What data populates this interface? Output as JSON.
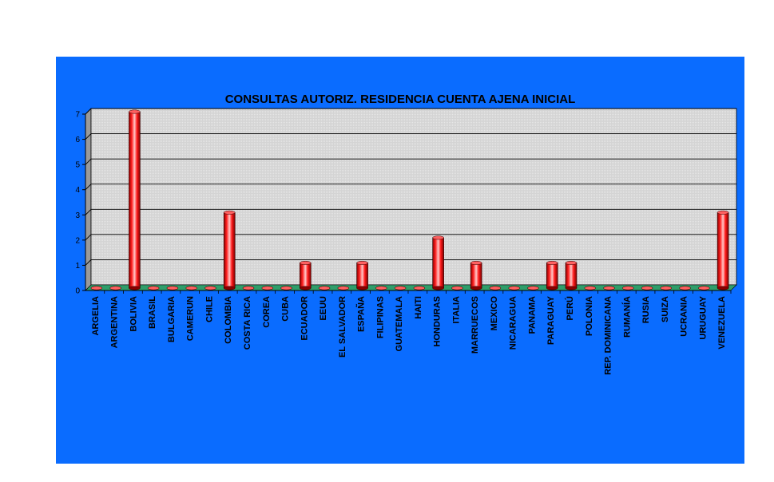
{
  "chart_data": {
    "type": "bar",
    "title": "CONSULTAS AUTORIZ. RESIDENCIA CUENTA AJENA INICIAL",
    "xlabel": "",
    "ylabel": "",
    "ylim": [
      0,
      7
    ],
    "yticks": [
      "0",
      "1",
      "2",
      "3",
      "4",
      "5",
      "6",
      "7"
    ],
    "grid": true,
    "legend": "none",
    "categories": [
      "ARGELIA",
      "ARGENTINA",
      "BOLIVIA",
      "BRASIL",
      "BULGARIA",
      "CAMERUN",
      "CHILE",
      "COLOMBIA",
      "COSTA RICA",
      "COREA",
      "CUBA",
      "ECUADOR",
      "EEUU",
      "EL SALVADOR",
      "ESPAÑA",
      "FILIPINAS",
      "GUATEMALA",
      "HAITI",
      "HONDURAS",
      "ITALIA",
      "MARRUECOS",
      "MEXICO",
      "NICARAGUA",
      "PANAMA",
      "PARAGUAY",
      "PERÚ",
      "POLONIA",
      "REP. DOMINICANA",
      "RUMANÍA",
      "RUSIA",
      "SUIZA",
      "UCRANIA",
      "URUGUAY",
      "VENEZUELA"
    ],
    "values": [
      0,
      0,
      7,
      0,
      0,
      0,
      0,
      3,
      0,
      0,
      0,
      1,
      0,
      0,
      1,
      0,
      0,
      0,
      2,
      0,
      1,
      0,
      0,
      0,
      1,
      1,
      0,
      0,
      0,
      0,
      0,
      0,
      0,
      3
    ],
    "colors": {
      "background": "#0a6cff",
      "plot_area": "#d9d9d9",
      "bar": "#ff0000",
      "floor": "#2f9e6a",
      "gridline": "#000000"
    }
  }
}
